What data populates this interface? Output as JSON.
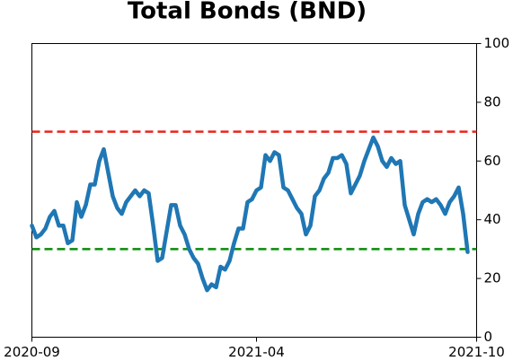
{
  "chart_data": {
    "type": "line",
    "title": "Total Bonds (BND)",
    "categories": [
      "2020-09",
      null,
      null,
      null,
      null,
      null,
      null,
      null,
      null,
      null,
      null,
      null,
      null,
      null,
      null,
      null,
      null,
      null,
      null,
      null,
      null,
      null,
      null,
      null,
      null,
      null,
      null,
      null,
      null,
      null,
      null,
      null,
      null,
      null,
      null,
      null,
      null,
      null,
      null,
      null,
      null,
      null,
      null,
      null,
      null,
      null,
      null,
      null,
      null,
      null,
      "2021-04",
      null,
      null,
      null,
      null,
      null,
      null,
      null,
      null,
      null,
      null,
      null,
      null,
      null,
      null,
      null,
      null,
      null,
      null,
      null,
      null,
      null,
      null,
      null,
      null,
      null,
      null,
      null,
      null,
      null,
      null,
      null,
      null,
      null,
      null,
      null,
      null,
      null,
      null,
      null,
      null,
      null,
      null,
      null,
      null,
      null,
      null,
      null,
      null,
      "2021-10"
    ],
    "values": [
      38,
      34,
      35,
      37,
      41,
      43,
      38,
      38,
      32,
      33,
      46,
      41,
      45,
      52,
      52,
      60,
      64,
      56,
      48,
      44,
      42,
      46,
      48,
      50,
      48,
      50,
      49,
      38,
      26,
      27,
      36,
      45,
      45,
      38,
      35,
      30,
      27,
      25,
      20,
      16,
      18,
      17,
      24,
      23,
      26,
      32,
      37,
      37,
      46,
      47,
      50,
      51,
      62,
      60,
      63,
      62,
      51,
      50,
      47,
      44,
      42,
      35,
      38,
      48,
      50,
      54,
      56,
      61,
      61,
      62,
      59,
      49,
      52,
      55,
      60,
      64,
      68,
      65,
      60,
      58,
      61,
      59,
      60,
      45,
      40,
      35,
      42,
      46,
      47,
      46,
      47,
      45,
      42,
      46,
      48,
      51,
      42,
      29,
      null,
      null
    ],
    "color": "#1f77b4",
    "ylim": [
      0,
      100
    ],
    "yticks": [
      0,
      20,
      40,
      60,
      80,
      100
    ],
    "y_axis_side": "right",
    "hlines": [
      {
        "value": 70,
        "color": "#e8241c"
      },
      {
        "value": 30,
        "color": "#0a8a0a"
      }
    ]
  }
}
